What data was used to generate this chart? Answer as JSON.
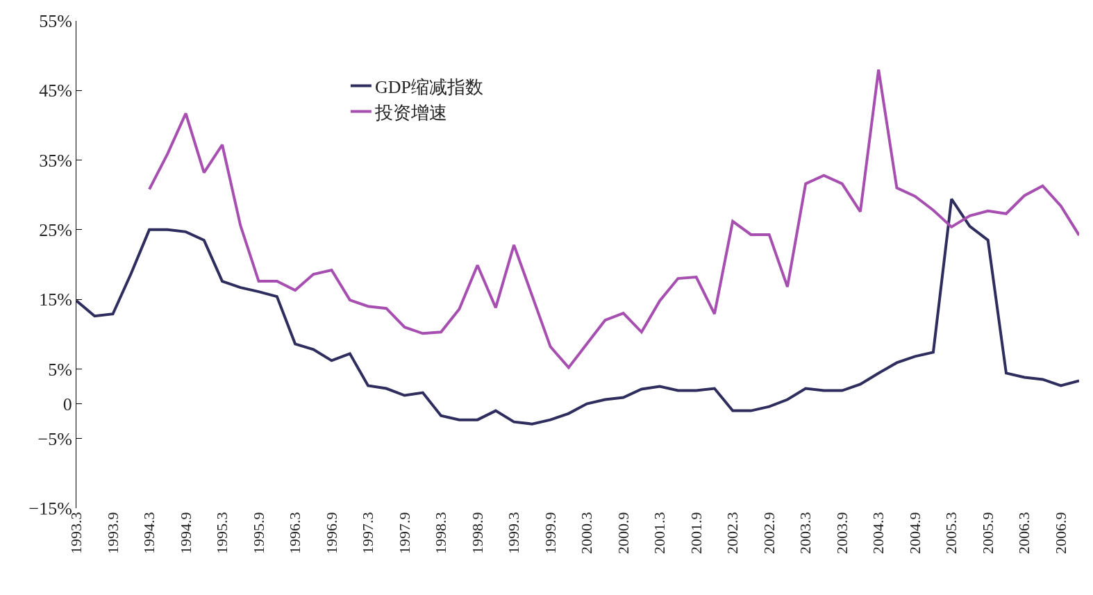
{
  "chart_data": {
    "type": "line",
    "categories": [
      "1993.3",
      null,
      "1993.9",
      null,
      "1994.3",
      null,
      "1994.9",
      null,
      "1995.3",
      null,
      "1995.9",
      null,
      "1996.3",
      null,
      "1996.9",
      null,
      "1997.3",
      null,
      "1997.9",
      null,
      "1998.3",
      null,
      "1998.9",
      null,
      "1999.3",
      null,
      "1999.9",
      null,
      "2000.3",
      null,
      "2000.9",
      null,
      "2001.3",
      null,
      "2001.9",
      null,
      "2002.3",
      null,
      "2002.9",
      null,
      "2003.3",
      null,
      "2003.9",
      null,
      "2004.3",
      null,
      "2004.9",
      null,
      "2005.3",
      null,
      "2005.9",
      null,
      "2006.3",
      null,
      "2006.9",
      null
    ],
    "series": [
      {
        "name": "GDP缩减指数",
        "color": "#2e2d5e",
        "values": [
          14.8,
          12.6,
          12.9,
          18.7,
          25,
          25,
          24.7,
          23.5,
          17.6,
          16.7,
          16.1,
          15.4,
          8.6,
          7.8,
          6.2,
          7.2,
          2.6,
          2.2,
          1.2,
          1.6,
          -1.7,
          -2.3,
          -2.3,
          -1.0,
          -2.6,
          -2.9,
          -2.3,
          -1.4,
          0,
          0.6,
          0.9,
          2.1,
          2.5,
          1.9,
          1.9,
          2.2,
          -1.0,
          -1.0,
          -0.4,
          0.6,
          2.2,
          1.9,
          1.9,
          2.8,
          4.4,
          5.9,
          6.8,
          7.4,
          29.4,
          25.5,
          23.5,
          4.4,
          3.8,
          3.5,
          2.6,
          3.3
        ]
      },
      {
        "name": "投资增速",
        "color": "#a64fb0",
        "values": [
          null,
          null,
          null,
          null,
          30.8,
          35.9,
          41.7,
          33.2,
          37.2,
          25.6,
          17.6,
          17.6,
          16.3,
          18.6,
          19.2,
          14.9,
          14.0,
          13.7,
          11.0,
          10.1,
          10.3,
          13.6,
          19.9,
          13.8,
          22.8,
          15.5,
          8.2,
          5.2,
          8.6,
          12.0,
          13.0,
          10.3,
          14.8,
          18.0,
          18.2,
          12.9,
          26.2,
          24.3,
          24.3,
          16.8,
          31.6,
          32.8,
          31.6,
          27.6,
          48.0,
          31.0,
          29.8,
          27.8,
          25.4,
          27.0,
          27.7,
          27.3,
          29.9,
          31.3,
          28.4,
          24.2
        ]
      }
    ],
    "ylim": [
      -15,
      55
    ],
    "yticks": [
      {
        "value": 55,
        "label": "55%"
      },
      {
        "value": 45,
        "label": "45%"
      },
      {
        "value": 35,
        "label": "35%"
      },
      {
        "value": 25,
        "label": "25%"
      },
      {
        "value": 15,
        "label": "15%"
      },
      {
        "value": 5,
        "label": "5%"
      },
      0,
      {
        "value": -5,
        "label": "−5%"
      },
      {
        "value": -15,
        "label": "−15%"
      }
    ],
    "grid": false,
    "legend": "top left",
    "marker": "none",
    "line_style": "solid"
  }
}
